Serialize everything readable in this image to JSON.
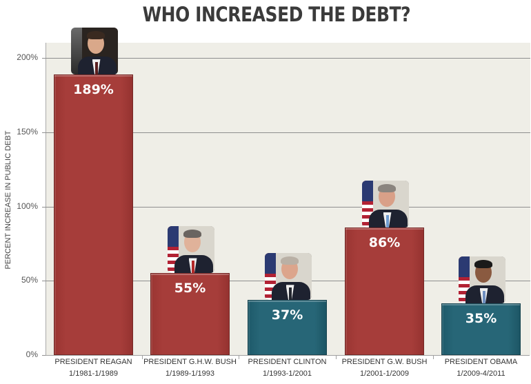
{
  "title": "WHO INCREASED THE DEBT?",
  "colors": {
    "plot_background": "#efeee7",
    "red_bar": "#a63d3a",
    "teal_bar": "#276677",
    "value_text": "#ffffff",
    "title_text": "#3b3b3b"
  },
  "y_axis": {
    "title": "PERCENT INCREASE IN PUBLIC DEBT",
    "ticks": [
      "0%",
      "50%",
      "100%",
      "150%",
      "200%"
    ]
  },
  "bars": [
    {
      "label": "PRESIDENT REAGAN",
      "term": "1/1981-1/1989",
      "value": 189,
      "value_label": "189%",
      "color": "red",
      "portrait": "reagan-portrait"
    },
    {
      "label": "PRESIDENT G.H.W. BUSH",
      "term": "1/1989-1/1993",
      "value": 55,
      "value_label": "55%",
      "color": "red",
      "portrait": "ghw-bush-portrait"
    },
    {
      "label": "PRESIDENT CLINTON",
      "term": "1/1993-1/2001",
      "value": 37,
      "value_label": "37%",
      "color": "teal",
      "portrait": "clinton-portrait"
    },
    {
      "label": "PRESIDENT G.W. BUSH",
      "term": "1/2001-1/2009",
      "value": 86,
      "value_label": "86%",
      "color": "red",
      "portrait": "gw-bush-portrait"
    },
    {
      "label": "PRESIDENT OBAMA",
      "term": "1/2009-4/2011",
      "value": 35,
      "value_label": "35%",
      "color": "teal",
      "portrait": "obama-portrait"
    }
  ],
  "chart_data": {
    "type": "bar",
    "title": "WHO INCREASED THE DEBT?",
    "categories": [
      "PRESIDENT REAGAN 1/1981-1/1989",
      "PRESIDENT G.H.W. BUSH 1/1989-1/1993",
      "PRESIDENT CLINTON 1/1993-1/2001",
      "PRESIDENT G.W. BUSH 1/2001-1/2009",
      "PRESIDENT OBAMA 1/2009-4/2011"
    ],
    "values": [
      189,
      55,
      37,
      86,
      35
    ],
    "value_labels": [
      "189%",
      "55%",
      "37%",
      "86%",
      "35%"
    ],
    "bar_colors": [
      "#a63d3a",
      "#a63d3a",
      "#276677",
      "#a63d3a",
      "#276677"
    ],
    "xlabel": "",
    "ylabel": "PERCENT INCREASE IN PUBLIC DEBT",
    "ylim": [
      0,
      200
    ],
    "yticks": [
      0,
      50,
      100,
      150,
      200
    ],
    "ytick_labels": [
      "0%",
      "50%",
      "100%",
      "150%",
      "200%"
    ],
    "grid": true,
    "legend": null,
    "annotations": [
      "President portrait above each bar"
    ]
  }
}
